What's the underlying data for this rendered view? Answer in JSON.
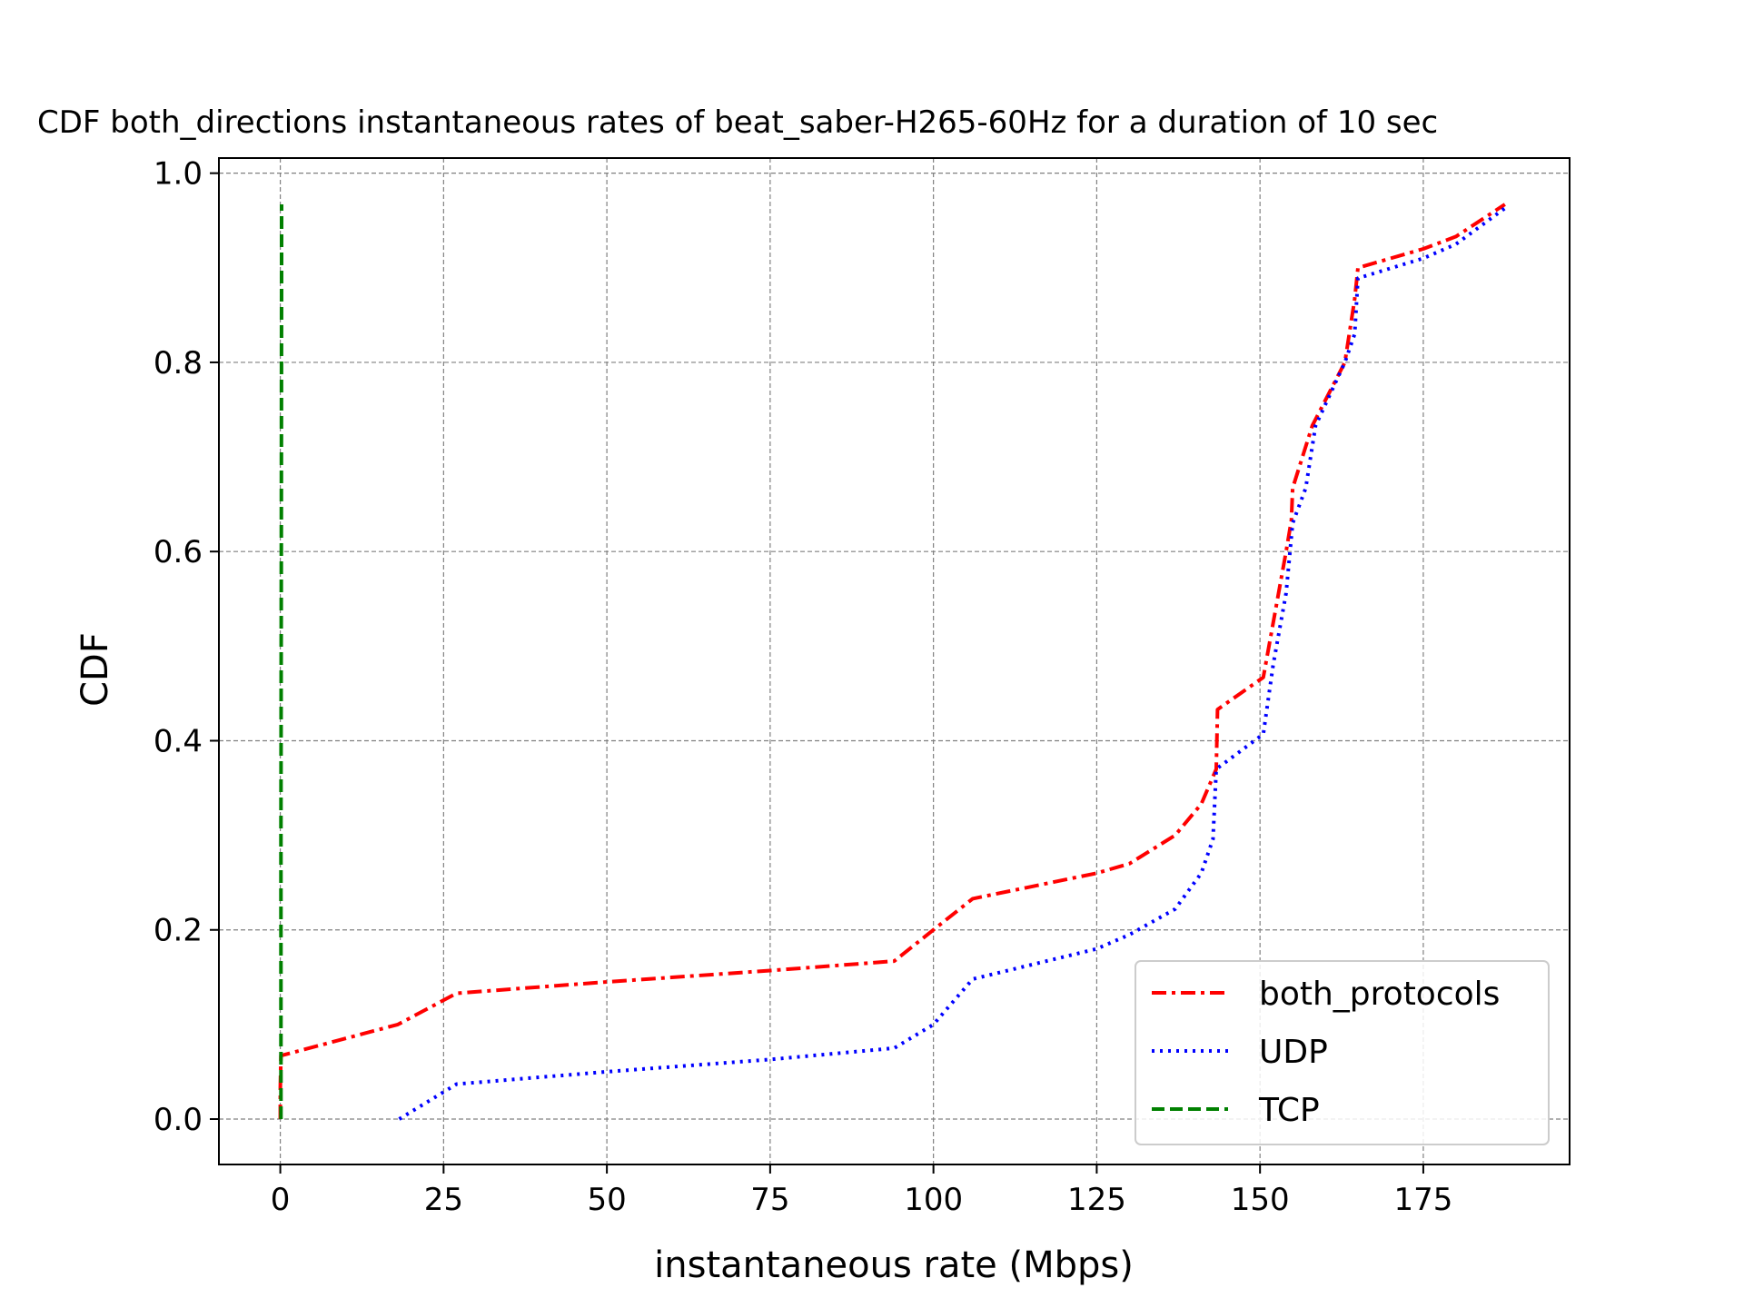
{
  "chart_data": {
    "type": "line",
    "title": "CDF both_directions instantaneous rates of beat_saber-H265-60Hz for a duration of 10 sec",
    "xlabel": "instantaneous rate (Mbps)",
    "ylabel": "CDF",
    "xlim": [
      -9.4,
      197.4
    ],
    "ylim": [
      -0.048,
      1.016
    ],
    "xticks": [
      0,
      25,
      50,
      75,
      100,
      125,
      150,
      175
    ],
    "xtick_labels": [
      "0",
      "25",
      "50",
      "75",
      "100",
      "125",
      "150",
      "175"
    ],
    "yticks": [
      0.0,
      0.2,
      0.4,
      0.6,
      0.8,
      1.0
    ],
    "ytick_labels": [
      "0.0",
      "0.2",
      "0.4",
      "0.6",
      "0.8",
      "1.0"
    ],
    "grid": true,
    "legend_position": "lower-right",
    "series": [
      {
        "name": "both_protocols",
        "color": "#ff0000",
        "style": "dashdot",
        "x": [
          0,
          0,
          0.1,
          18,
          27,
          50,
          75,
          94,
          100,
          106,
          125,
          130,
          137,
          141,
          143.3,
          143.5,
          150.5,
          154,
          154.8,
          155,
          158,
          163,
          164.5,
          165,
          175,
          180,
          187.5
        ],
        "y": [
          0.0,
          0.033,
          0.067,
          0.1,
          0.133,
          0.145,
          0.157,
          0.167,
          0.2,
          0.233,
          0.26,
          0.27,
          0.3,
          0.333,
          0.37,
          0.433,
          0.467,
          0.6,
          0.633,
          0.667,
          0.733,
          0.8,
          0.867,
          0.9,
          0.92,
          0.933,
          0.967
        ]
      },
      {
        "name": "UDP",
        "color": "#0000ff",
        "style": "dotted",
        "x": [
          18.2,
          27,
          50,
          75,
          94,
          100,
          106,
          125,
          130,
          137,
          141,
          142.8,
          143.3,
          150.5,
          152,
          154,
          155,
          157,
          158.5,
          163,
          164.5,
          165,
          175,
          180,
          187.5
        ],
        "y": [
          0.0,
          0.037,
          0.05,
          0.063,
          0.075,
          0.1,
          0.148,
          0.18,
          0.195,
          0.222,
          0.26,
          0.296,
          0.37,
          0.407,
          0.48,
          0.556,
          0.63,
          0.667,
          0.733,
          0.8,
          0.83,
          0.889,
          0.91,
          0.925,
          0.963
        ]
      },
      {
        "name": "TCP",
        "color": "#008000",
        "style": "dashed",
        "x": [
          0.1,
          0.1,
          0.15,
          0.2,
          0.2
        ],
        "y": [
          0.0,
          0.3,
          0.6,
          0.9,
          0.967
        ]
      }
    ]
  }
}
